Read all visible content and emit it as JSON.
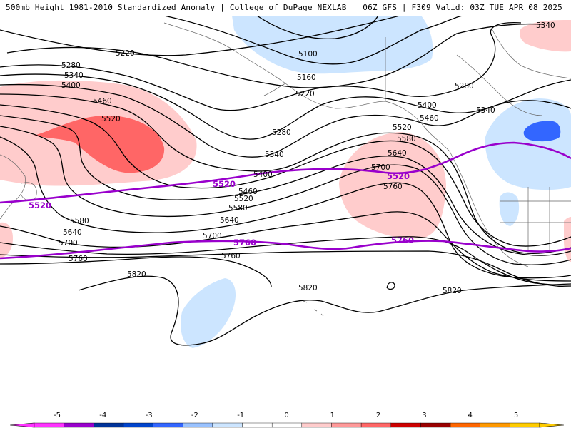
{
  "header": {
    "title_left": "500mb Height 1981-2010 Standardized Anomaly | College of DuPage NEXLAB",
    "title_right": "06Z GFS | F309 Valid: 03Z TUE APR 08 2025"
  },
  "map": {
    "contour_labels": [
      "5100",
      "5160",
      "5220",
      "5220",
      "5280",
      "5280",
      "5280",
      "5340",
      "5340",
      "5340",
      "5340",
      "5400",
      "5400",
      "5400",
      "5460",
      "5460",
      "5460",
      "5520",
      "5520",
      "5520",
      "5580",
      "5580",
      "5580",
      "5640",
      "5640",
      "5640",
      "5700",
      "5700",
      "5700",
      "5760",
      "5760",
      "5760",
      "5820",
      "5820",
      "5820"
    ],
    "highlight_labels": [
      "5520",
      "5520",
      "5520",
      "5760",
      "5760"
    ],
    "colors": {
      "contour": "#000000",
      "highlight": "#9900cc",
      "anom_pos_1": "#ffcccc",
      "anom_pos_2": "#ff8080",
      "anom_pos_3": "#ff6666",
      "anom_neg_1": "#cce5ff",
      "anom_neg_2": "#99c2ff",
      "anom_neg_3": "#3366ff"
    }
  },
  "colorbar": {
    "ticks": [
      "-5",
      "-4",
      "-3",
      "-2",
      "-1",
      "0",
      "1",
      "2",
      "3",
      "4",
      "5"
    ],
    "segments": [
      {
        "color": "#ff33ff"
      },
      {
        "color": "#9900cc"
      },
      {
        "color": "#003399"
      },
      {
        "color": "#0044cc"
      },
      {
        "color": "#3366ff"
      },
      {
        "color": "#99c2ff"
      },
      {
        "color": "#cce5ff"
      },
      {
        "color": "#ffffff"
      },
      {
        "color": "#ffffff"
      },
      {
        "color": "#ffcccc"
      },
      {
        "color": "#ff9999"
      },
      {
        "color": "#ff6666"
      },
      {
        "color": "#cc0000"
      },
      {
        "color": "#990000"
      },
      {
        "color": "#ff6600"
      },
      {
        "color": "#ff9900"
      },
      {
        "color": "#ffcc00"
      }
    ]
  }
}
